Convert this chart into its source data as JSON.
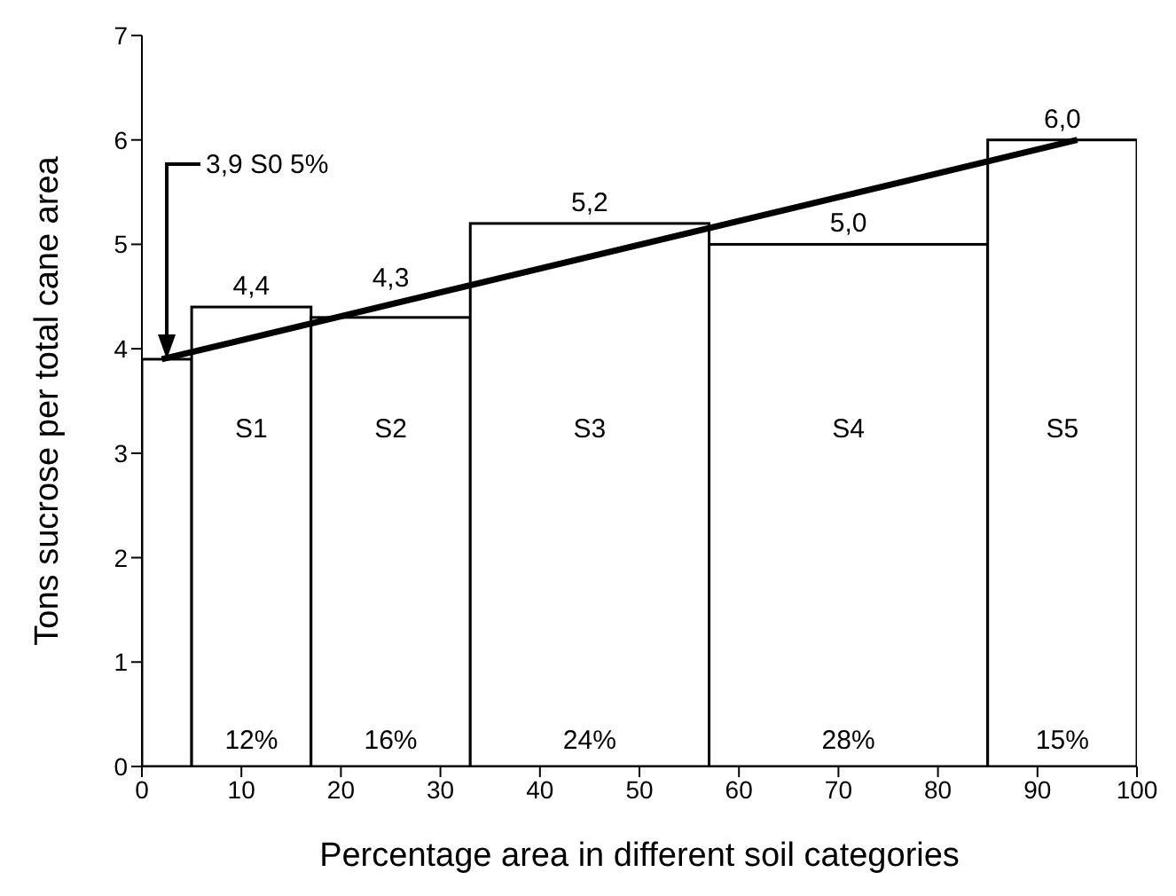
{
  "chart_data": {
    "type": "histogram",
    "xlabel": "Percentage area in different soil categories",
    "ylabel": "Tons sucrose per total cane area",
    "bins": [
      0,
      5,
      17,
      33,
      57,
      85,
      100
    ],
    "values": [
      3.9,
      4.4,
      4.3,
      5.2,
      5.0,
      6.0
    ],
    "value_labels": [
      null,
      "4,4",
      "4,3",
      "5,2",
      "5,0",
      "6,0"
    ],
    "color": "#ffffff",
    "series": [
      {
        "type": "line",
        "x": [
          2,
          94
        ],
        "values": [
          3.9,
          6.0
        ],
        "color": "#000000"
      }
    ],
    "xlim": [
      0,
      100
    ],
    "xticks": [
      0,
      10,
      20,
      30,
      40,
      50,
      60,
      70,
      80,
      90,
      100
    ],
    "ylim": [
      0,
      7
    ],
    "yticks": [
      0,
      1,
      2,
      3,
      4,
      5,
      6,
      7
    ],
    "annotations": [
      "3,9  S0  5%",
      "S1",
      "S2",
      "S3",
      "S4",
      "S5",
      "12%",
      "16%",
      "24%",
      "28%",
      "15%"
    ]
  }
}
